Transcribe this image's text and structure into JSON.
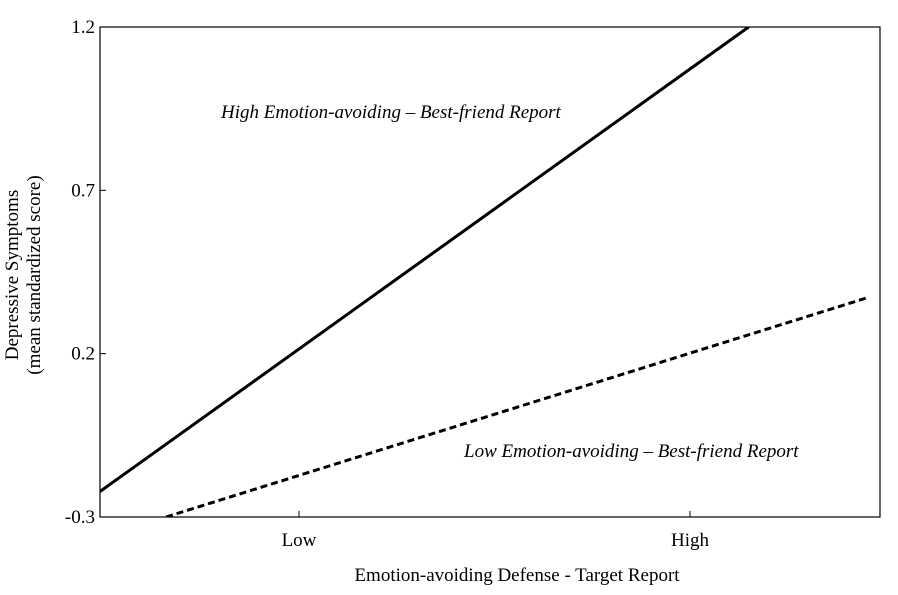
{
  "chart_data": {
    "type": "line",
    "xlabel": "Emotion-avoiding Defense - Target Report",
    "ylabel": [
      "Depressive Symptoms",
      "(mean standardized score)"
    ],
    "x_categories": [
      "Low",
      "High"
    ],
    "y_ticks": [
      "-0.3",
      "0.2",
      "0.7",
      "1.2"
    ],
    "ylim": [
      -0.3,
      1.2
    ],
    "grid": false,
    "legend": "none",
    "series": [
      {
        "name": "High Emotion-avoiding – Best-friend Report",
        "style": "solid",
        "points": [
          [
            -0.6,
            -0.3
          ],
          [
            1.15,
            1.2
          ]
        ]
      },
      {
        "name": "Low Emotion-avoiding – Best-friend Report",
        "style": "dashed",
        "points": [
          [
            -0.34,
            -0.3
          ],
          [
            1.45,
            0.37
          ]
        ]
      }
    ]
  }
}
